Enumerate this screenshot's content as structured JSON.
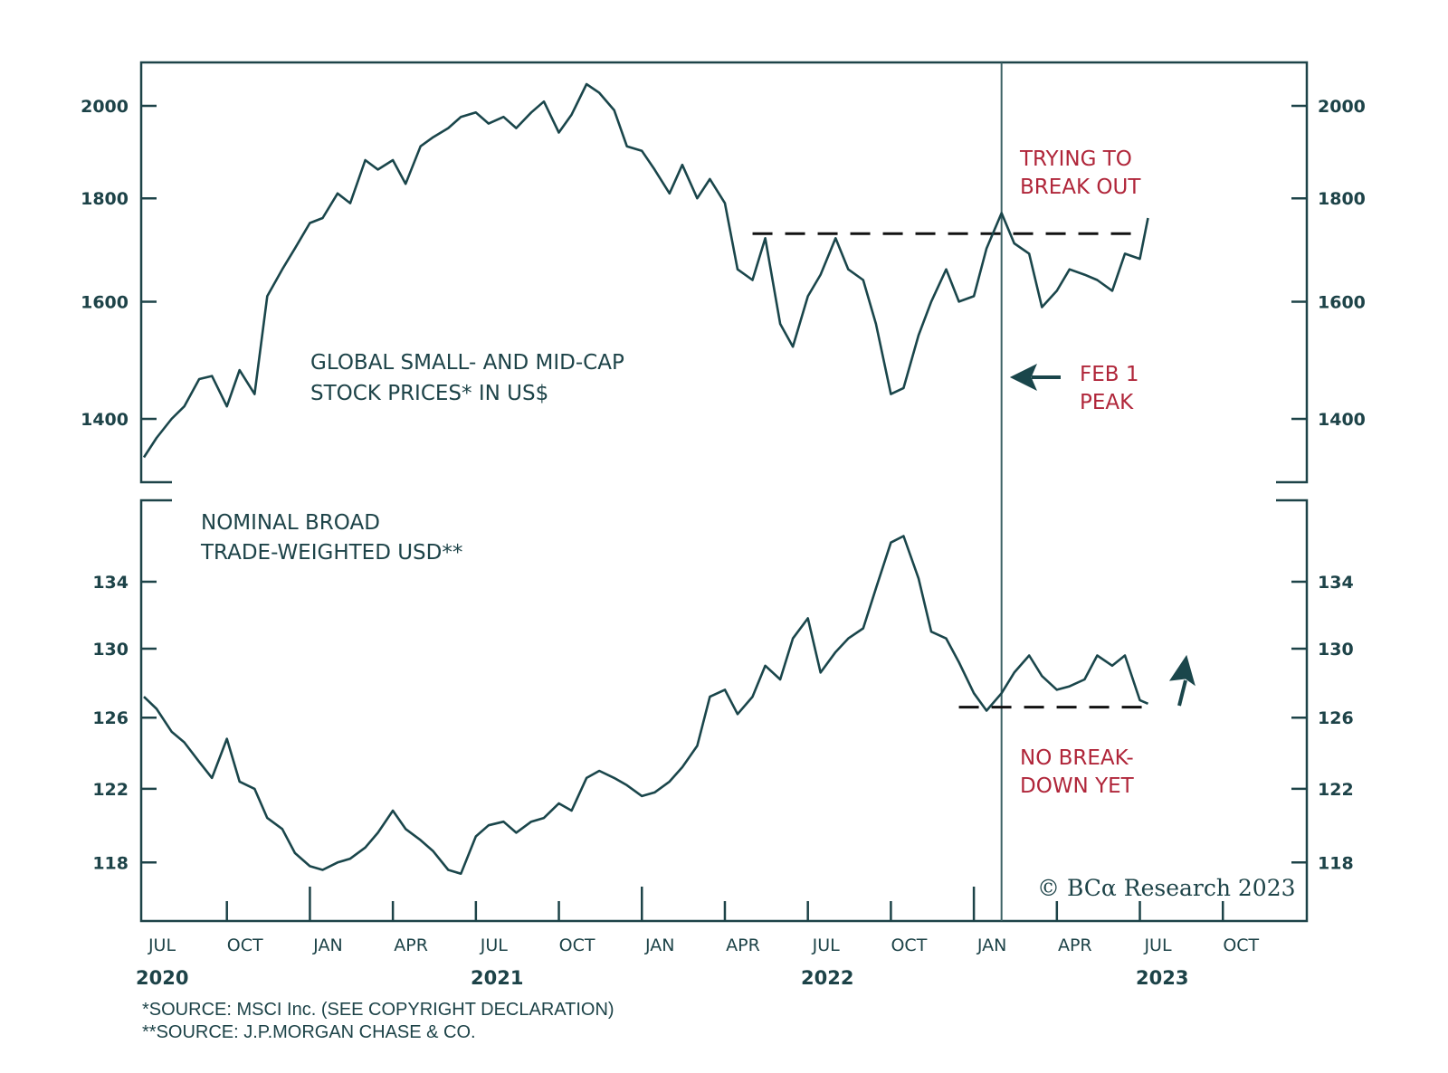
{
  "chart_data": [
    {
      "type": "line",
      "panel": "top",
      "title": "GLOBAL SMALL- AND MID-CAP STOCK PRICES* IN US$",
      "title_lines": [
        "GLOBAL SMALL- AND MID-CAP",
        "STOCK PRICES* IN US$"
      ],
      "y_scale": "log",
      "ylim": [
        1320,
        2090
      ],
      "yticks": [
        1400,
        1600,
        1800,
        2000
      ],
      "ytick_labels": [
        "1400",
        "1600",
        "1800",
        "2000"
      ],
      "grid": false,
      "series": [
        {
          "name": "Global small- and mid-cap stock prices in US$",
          "x": [
            "2020-07-01",
            "2020-07-15",
            "2020-08-01",
            "2020-08-15",
            "2020-09-01",
            "2020-09-15",
            "2020-10-01",
            "2020-10-15",
            "2020-11-01",
            "2020-11-15",
            "2020-12-01",
            "2020-12-15",
            "2021-01-01",
            "2021-01-15",
            "2021-02-01",
            "2021-02-15",
            "2021-03-01",
            "2021-03-15",
            "2021-04-01",
            "2021-04-15",
            "2021-05-01",
            "2021-05-15",
            "2021-06-01",
            "2021-06-15",
            "2021-07-01",
            "2021-07-15",
            "2021-08-01",
            "2021-08-15",
            "2021-09-01",
            "2021-09-15",
            "2021-10-01",
            "2021-10-15",
            "2021-11-01",
            "2021-11-15",
            "2021-12-01",
            "2021-12-15",
            "2022-01-01",
            "2022-01-15",
            "2022-02-01",
            "2022-02-15",
            "2022-03-01",
            "2022-03-15",
            "2022-04-01",
            "2022-04-15",
            "2022-05-01",
            "2022-05-15",
            "2022-06-01",
            "2022-06-15",
            "2022-07-01",
            "2022-07-15",
            "2022-08-01",
            "2022-08-15",
            "2022-09-01",
            "2022-09-15",
            "2022-10-01",
            "2022-10-15",
            "2022-11-01",
            "2022-11-15",
            "2022-12-01",
            "2022-12-15",
            "2023-01-01",
            "2023-01-15",
            "2023-02-01",
            "2023-02-15",
            "2023-03-01",
            "2023-03-15",
            "2023-04-01",
            "2023-04-15",
            "2023-05-01",
            "2023-05-15",
            "2023-06-01",
            "2023-06-15",
            "2023-07-01",
            "2023-07-10"
          ],
          "values": [
            1340,
            1370,
            1400,
            1420,
            1465,
            1470,
            1420,
            1480,
            1440,
            1610,
            1660,
            1700,
            1750,
            1760,
            1810,
            1790,
            1880,
            1860,
            1880,
            1830,
            1910,
            1930,
            1950,
            1975,
            1985,
            1960,
            1975,
            1950,
            1985,
            2010,
            1940,
            1980,
            2050,
            2030,
            1990,
            1910,
            1900,
            1860,
            1810,
            1870,
            1800,
            1840,
            1790,
            1660,
            1640,
            1720,
            1560,
            1520,
            1610,
            1650,
            1720,
            1660,
            1640,
            1560,
            1440,
            1450,
            1540,
            1600,
            1660,
            1600,
            1610,
            1700,
            1770,
            1710,
            1690,
            1590,
            1620,
            1660,
            1650,
            1640,
            1620,
            1690,
            1680,
            1760
          ]
        }
      ],
      "reference_lines": [
        {
          "type": "horizontal-dashed",
          "value": 1729,
          "from": "2022-05-01",
          "to": "2023-07-01"
        }
      ],
      "annotations": [
        {
          "text": "TRYING TO BREAK OUT",
          "lines": [
            "TRYING TO",
            "BREAK OUT"
          ],
          "color": "#b0263a"
        },
        {
          "text": "FEB 1 PEAK",
          "lines": [
            "FEB 1",
            "PEAK"
          ],
          "color": "#b0263a",
          "arrow": "left"
        }
      ]
    },
    {
      "type": "line",
      "panel": "bottom",
      "title": "NOMINAL BROAD TRADE-WEIGHTED USD**",
      "title_lines": [
        "NOMINAL BROAD",
        "TRADE-WEIGHTED USD**"
      ],
      "y_scale": "log",
      "ylim": [
        115.2,
        138.2
      ],
      "yticks": [
        118,
        122,
        126,
        130,
        134
      ],
      "ytick_labels": [
        "118",
        "122",
        "126",
        "130",
        "134"
      ],
      "grid": false,
      "series": [
        {
          "name": "Nominal broad trade-weighted USD",
          "x": [
            "2020-07-01",
            "2020-07-15",
            "2020-08-01",
            "2020-08-15",
            "2020-09-01",
            "2020-09-15",
            "2020-10-01",
            "2020-10-15",
            "2020-11-01",
            "2020-11-15",
            "2020-12-01",
            "2020-12-15",
            "2021-01-01",
            "2021-01-15",
            "2021-02-01",
            "2021-02-15",
            "2021-03-01",
            "2021-03-15",
            "2021-04-01",
            "2021-04-15",
            "2021-05-01",
            "2021-05-15",
            "2021-06-01",
            "2021-06-15",
            "2021-07-01",
            "2021-07-15",
            "2021-08-01",
            "2021-08-15",
            "2021-09-01",
            "2021-09-15",
            "2021-10-01",
            "2021-10-15",
            "2021-11-01",
            "2021-11-15",
            "2021-12-01",
            "2021-12-15",
            "2022-01-01",
            "2022-01-15",
            "2022-02-01",
            "2022-02-15",
            "2022-03-01",
            "2022-03-15",
            "2022-04-01",
            "2022-04-15",
            "2022-05-01",
            "2022-05-15",
            "2022-06-01",
            "2022-06-15",
            "2022-07-01",
            "2022-07-15",
            "2022-08-01",
            "2022-08-15",
            "2022-09-01",
            "2022-09-15",
            "2022-10-01",
            "2022-10-15",
            "2022-11-01",
            "2022-11-15",
            "2022-12-01",
            "2022-12-15",
            "2023-01-01",
            "2023-01-15",
            "2023-02-01",
            "2023-02-15",
            "2023-03-01",
            "2023-03-15",
            "2023-04-01",
            "2023-04-15",
            "2023-05-01",
            "2023-05-15",
            "2023-06-01",
            "2023-06-15",
            "2023-07-01",
            "2023-07-10"
          ],
          "values": [
            127.2,
            126.5,
            125.2,
            124.6,
            123.5,
            122.6,
            124.8,
            122.4,
            122.0,
            120.4,
            119.8,
            118.5,
            117.8,
            117.6,
            118.0,
            118.2,
            118.8,
            119.6,
            120.8,
            119.8,
            119.2,
            118.6,
            117.6,
            117.4,
            119.4,
            120.0,
            120.2,
            119.6,
            120.2,
            120.4,
            121.2,
            120.8,
            122.6,
            123.0,
            122.6,
            122.2,
            121.6,
            121.8,
            122.4,
            123.2,
            124.4,
            127.2,
            127.6,
            126.2,
            127.2,
            129.0,
            128.2,
            130.6,
            131.8,
            128.6,
            129.8,
            130.6,
            131.2,
            133.6,
            136.4,
            136.8,
            134.2,
            131.0,
            130.6,
            129.2,
            127.4,
            126.4,
            127.4,
            128.6,
            129.6,
            128.4,
            127.6,
            127.8,
            128.2,
            129.6,
            129.0,
            129.6,
            127.0,
            126.8
          ]
        }
      ],
      "reference_lines": [
        {
          "type": "horizontal-dashed",
          "value": 126.6,
          "from": "2022-12-15",
          "to": "2023-07-15"
        }
      ],
      "annotations": [
        {
          "text": "NO BREAK-DOWN YET",
          "lines": [
            "NO BREAK-",
            "DOWN YET"
          ],
          "color": "#b0263a"
        },
        {
          "text": "",
          "arrow": "up"
        }
      ]
    }
  ],
  "x_axis": {
    "month_ticks": [
      "2020-07",
      "2020-10",
      "2021-01",
      "2021-04",
      "2021-07",
      "2021-10",
      "2022-01",
      "2022-04",
      "2022-07",
      "2022-10",
      "2023-01",
      "2023-04",
      "2023-07",
      "2023-10"
    ],
    "month_labels": [
      "JUL",
      "OCT",
      "JAN",
      "APR",
      "JUL",
      "OCT",
      "JAN",
      "APR",
      "JUL",
      "OCT",
      "JAN",
      "APR",
      "JUL",
      "OCT"
    ],
    "year_labels": [
      "2020",
      "2021",
      "2022",
      "2023"
    ],
    "range": [
      "2020-07-01",
      "2023-12-31"
    ]
  },
  "event_line": {
    "date": "2023-02-01",
    "label": "FEB 1 PEAK"
  },
  "footnotes": [
    "*SOURCE: MSCI Inc. (SEE COPYRIGHT DECLARATION)",
    "**SOURCE: J.P.MORGAN CHASE & CO."
  ],
  "copyright": "© BCα Research 2023",
  "colors": {
    "series": "#1a464b",
    "axis": "#1d4348",
    "annotation": "#b0263a",
    "dashed": "#111111"
  }
}
